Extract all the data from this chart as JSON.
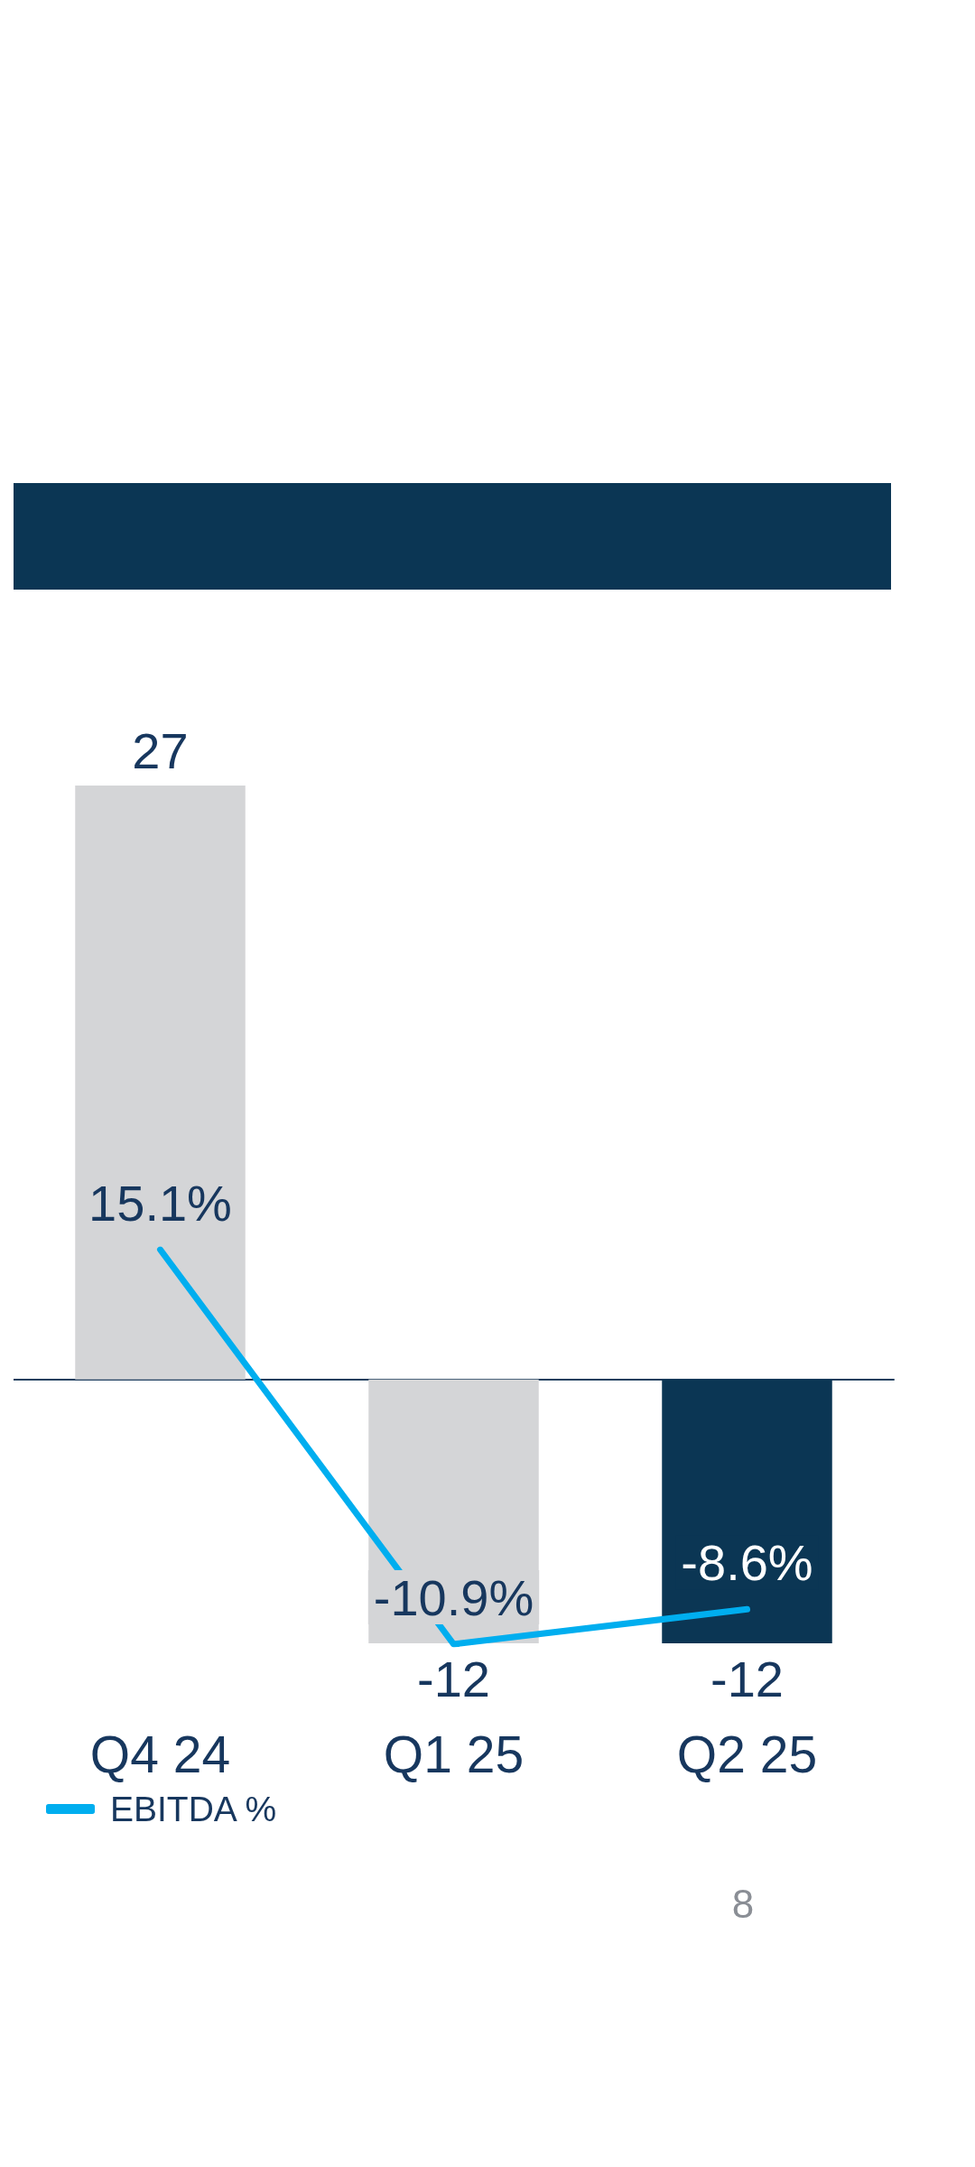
{
  "chart_data": {
    "type": "bar",
    "categories": [
      "Q4 24",
      "Q1 25",
      "Q2 25"
    ],
    "series": [
      {
        "colors": [
          "#d4d5d7",
          "#d4d5d7",
          "#0b3654"
        ],
        "values": [
          27,
          -12,
          -12
        ],
        "value_labels": [
          "27",
          "-12",
          "-12"
        ]
      },
      {
        "type": "line",
        "name": "EBITDA %",
        "color": "#00aeef",
        "axis": "y2",
        "values": [
          15.1,
          -10.9,
          -8.6
        ],
        "value_labels": [
          "15.1%",
          "-10.9%",
          "-8.6%"
        ]
      }
    ],
    "tick_labels": "x",
    "legend": "bottom left",
    "annotations": [
      "8"
    ]
  }
}
